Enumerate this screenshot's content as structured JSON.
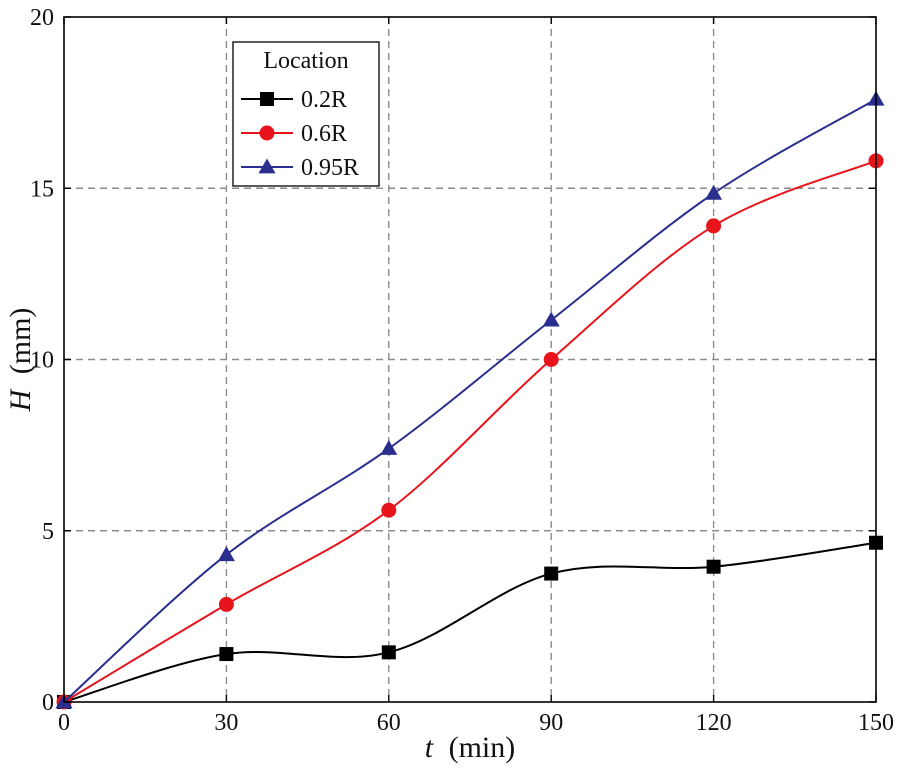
{
  "chart_data": {
    "type": "line",
    "title": "",
    "xlabel_var": "t",
    "xlabel_unit": "(min)",
    "ylabel_var": "H",
    "ylabel_unit": "(mm)",
    "x": [
      0,
      30,
      60,
      90,
      120,
      150
    ],
    "xlim": [
      0,
      150
    ],
    "ylim": [
      0,
      20
    ],
    "xticks": [
      0,
      30,
      60,
      90,
      120,
      150
    ],
    "yticks": [
      0,
      5,
      10,
      15,
      20
    ],
    "xtick_labels": [
      "0",
      "30",
      "60",
      "90",
      "120",
      "150"
    ],
    "ytick_labels": [
      "0",
      "5",
      "10",
      "15",
      "20"
    ],
    "grid": true,
    "legend": {
      "title": "Location",
      "placement": "top-left"
    },
    "series": [
      {
        "name": "0.2R",
        "color": "#000000",
        "marker": "square",
        "values": [
          0,
          1.4,
          1.45,
          3.75,
          3.95,
          4.65
        ]
      },
      {
        "name": "0.6R",
        "color": "#e8141c",
        "marker": "circle",
        "values": [
          0,
          2.85,
          5.6,
          10.0,
          13.9,
          15.8
        ]
      },
      {
        "name": "0.95R",
        "color": "#2a2f8f",
        "marker": "triangle",
        "values": [
          0,
          4.3,
          7.4,
          11.15,
          14.85,
          17.6
        ]
      }
    ]
  }
}
